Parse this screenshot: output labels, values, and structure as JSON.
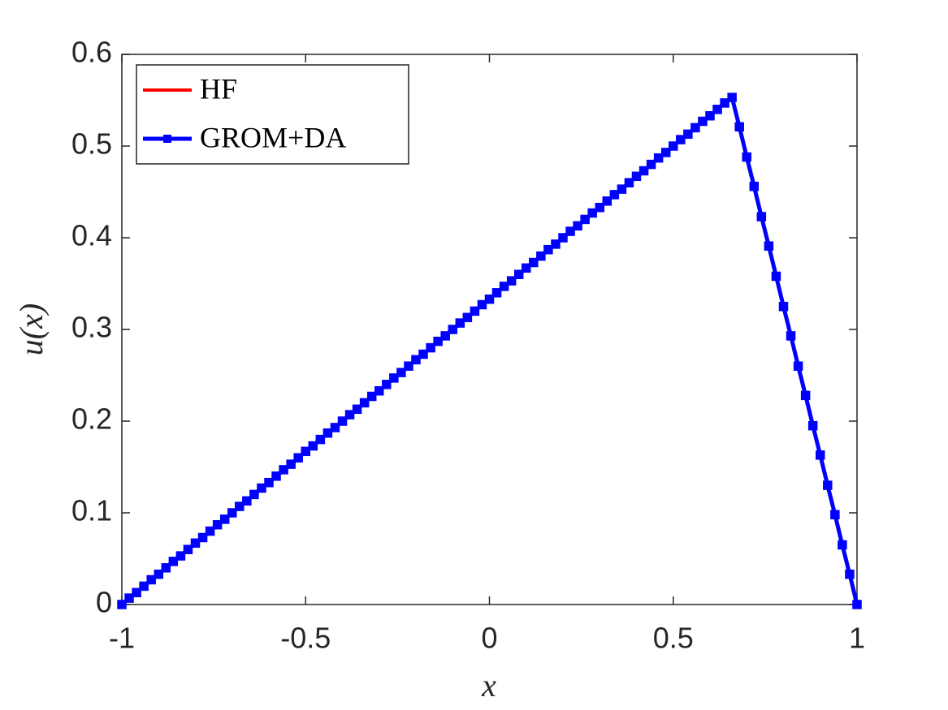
{
  "chart_data": {
    "type": "line",
    "xlabel": "x",
    "ylabel": "u(x)",
    "x": [
      -1,
      -0.98,
      -0.96,
      -0.94,
      -0.92,
      -0.9,
      -0.88,
      -0.86,
      -0.84,
      -0.82,
      -0.8,
      -0.78,
      -0.76,
      -0.74,
      -0.72,
      -0.7,
      -0.68,
      -0.66,
      -0.64,
      -0.62,
      -0.6,
      -0.58,
      -0.56,
      -0.54,
      -0.52,
      -0.5,
      -0.48,
      -0.46,
      -0.44,
      -0.42,
      -0.4,
      -0.38,
      -0.36,
      -0.34,
      -0.32,
      -0.3,
      -0.28,
      -0.26,
      -0.24,
      -0.22,
      -0.2,
      -0.18,
      -0.16,
      -0.14,
      -0.12,
      -0.1,
      -0.08,
      -0.06,
      -0.04,
      -0.02,
      0,
      0.02,
      0.04,
      0.06,
      0.08,
      0.1,
      0.12,
      0.14,
      0.16,
      0.18,
      0.2,
      0.22,
      0.24,
      0.26,
      0.28,
      0.3,
      0.32,
      0.34,
      0.36,
      0.38,
      0.4,
      0.42,
      0.44,
      0.46,
      0.48,
      0.5,
      0.52,
      0.54,
      0.56,
      0.58,
      0.6,
      0.62,
      0.64,
      0.66,
      0.68,
      0.7,
      0.72,
      0.74,
      0.76,
      0.78,
      0.8,
      0.82,
      0.84,
      0.86,
      0.88,
      0.9,
      0.92,
      0.94,
      0.96,
      0.98,
      1
    ],
    "series": [
      {
        "name": "HF",
        "color": "#ff0000",
        "marker": false,
        "values": [
          0,
          0.007,
          0.013,
          0.02,
          0.027,
          0.033,
          0.04,
          0.047,
          0.053,
          0.06,
          0.067,
          0.073,
          0.08,
          0.087,
          0.093,
          0.1,
          0.107,
          0.113,
          0.12,
          0.127,
          0.133,
          0.14,
          0.147,
          0.153,
          0.16,
          0.167,
          0.173,
          0.18,
          0.187,
          0.193,
          0.2,
          0.207,
          0.213,
          0.22,
          0.227,
          0.233,
          0.24,
          0.247,
          0.253,
          0.26,
          0.267,
          0.273,
          0.28,
          0.287,
          0.293,
          0.3,
          0.307,
          0.313,
          0.32,
          0.327,
          0.333,
          0.34,
          0.347,
          0.353,
          0.36,
          0.367,
          0.373,
          0.38,
          0.387,
          0.393,
          0.4,
          0.407,
          0.413,
          0.42,
          0.427,
          0.433,
          0.44,
          0.447,
          0.453,
          0.46,
          0.467,
          0.473,
          0.48,
          0.487,
          0.493,
          0.5,
          0.507,
          0.513,
          0.52,
          0.527,
          0.533,
          0.54,
          0.547,
          0.553,
          0.521,
          0.488,
          0.456,
          0.423,
          0.391,
          0.358,
          0.325,
          0.293,
          0.26,
          0.228,
          0.195,
          0.163,
          0.13,
          0.098,
          0.065,
          0.033,
          0
        ]
      },
      {
        "name": "GROM+DA",
        "color": "#0000ff",
        "marker": true,
        "values": [
          0,
          0.007,
          0.013,
          0.02,
          0.027,
          0.033,
          0.04,
          0.047,
          0.053,
          0.06,
          0.067,
          0.073,
          0.08,
          0.087,
          0.093,
          0.1,
          0.107,
          0.113,
          0.12,
          0.127,
          0.133,
          0.14,
          0.147,
          0.153,
          0.16,
          0.167,
          0.173,
          0.18,
          0.187,
          0.193,
          0.2,
          0.207,
          0.213,
          0.22,
          0.227,
          0.233,
          0.24,
          0.247,
          0.253,
          0.26,
          0.267,
          0.273,
          0.28,
          0.287,
          0.293,
          0.3,
          0.307,
          0.313,
          0.32,
          0.327,
          0.333,
          0.34,
          0.347,
          0.353,
          0.36,
          0.367,
          0.373,
          0.38,
          0.387,
          0.393,
          0.4,
          0.407,
          0.413,
          0.42,
          0.427,
          0.433,
          0.44,
          0.447,
          0.453,
          0.46,
          0.467,
          0.473,
          0.48,
          0.487,
          0.493,
          0.5,
          0.507,
          0.513,
          0.52,
          0.527,
          0.533,
          0.54,
          0.547,
          0.553,
          0.521,
          0.488,
          0.456,
          0.423,
          0.391,
          0.358,
          0.325,
          0.293,
          0.26,
          0.228,
          0.195,
          0.163,
          0.13,
          0.098,
          0.065,
          0.033,
          0
        ]
      }
    ],
    "xlim": [
      -1,
      1
    ],
    "xticks": [
      -1,
      -0.5,
      0,
      0.5,
      1
    ],
    "ylim": [
      0,
      0.6
    ],
    "yticks": [
      0,
      0.1,
      0.2,
      0.3,
      0.4,
      0.5,
      0.6
    ],
    "grid": false,
    "legend": "upper left"
  }
}
